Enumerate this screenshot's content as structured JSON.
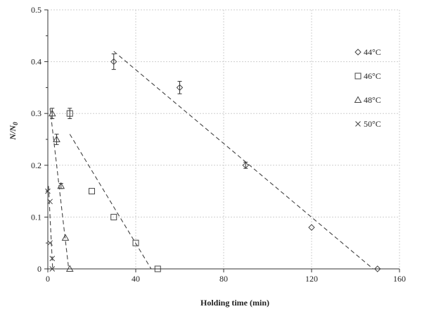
{
  "chart_data": {
    "type": "scatter",
    "xlabel": "Holding time (min)",
    "ylabel": "N/N0",
    "xlim": [
      0,
      160
    ],
    "ylim": [
      0,
      0.5
    ],
    "x_ticks": [
      0,
      40,
      80,
      120,
      160
    ],
    "y_ticks": [
      0,
      0.1,
      0.2,
      0.3,
      0.4,
      0.5
    ],
    "grid": true,
    "legend_position": "right",
    "series": [
      {
        "name": "44°C",
        "marker": "diamond",
        "points": [
          {
            "x": 30,
            "y": 0.4,
            "err": 0.015
          },
          {
            "x": 60,
            "y": 0.35,
            "err": 0.012
          },
          {
            "x": 90,
            "y": 0.2,
            "err": 0.006
          },
          {
            "x": 120,
            "y": 0.08,
            "err": 0
          },
          {
            "x": 150,
            "y": 0.0,
            "err": 0
          }
        ],
        "fit": [
          [
            30,
            0.42
          ],
          [
            148,
            0
          ]
        ]
      },
      {
        "name": "46°C",
        "marker": "square",
        "points": [
          {
            "x": 10,
            "y": 0.3,
            "err": 0.01
          },
          {
            "x": 20,
            "y": 0.15,
            "err": 0
          },
          {
            "x": 30,
            "y": 0.1,
            "err": 0
          },
          {
            "x": 40,
            "y": 0.05,
            "err": 0
          },
          {
            "x": 50,
            "y": 0.0,
            "err": 0
          }
        ],
        "fit": [
          [
            10,
            0.26
          ],
          [
            47,
            0
          ]
        ]
      },
      {
        "name": "48°C",
        "marker": "triangle",
        "points": [
          {
            "x": 2,
            "y": 0.3,
            "err": 0.01
          },
          {
            "x": 4,
            "y": 0.25,
            "err": 0.01
          },
          {
            "x": 6,
            "y": 0.16,
            "err": 0.005
          },
          {
            "x": 8,
            "y": 0.06,
            "err": 0
          },
          {
            "x": 10,
            "y": 0.0,
            "err": 0
          }
        ],
        "fit": [
          [
            1,
            0.31
          ],
          [
            9.5,
            0
          ]
        ]
      },
      {
        "name": "50°C",
        "marker": "x",
        "points": [
          {
            "x": 0,
            "y": 0.15,
            "err": 0
          },
          {
            "x": 1,
            "y": 0.13,
            "err": 0
          },
          {
            "x": 1,
            "y": 0.05,
            "err": 0
          },
          {
            "x": 2,
            "y": 0.02,
            "err": 0
          },
          {
            "x": 2,
            "y": 0.0,
            "err": 0
          }
        ],
        "fit": [
          [
            0.3,
            0.16
          ],
          [
            2.2,
            0
          ]
        ]
      }
    ]
  }
}
